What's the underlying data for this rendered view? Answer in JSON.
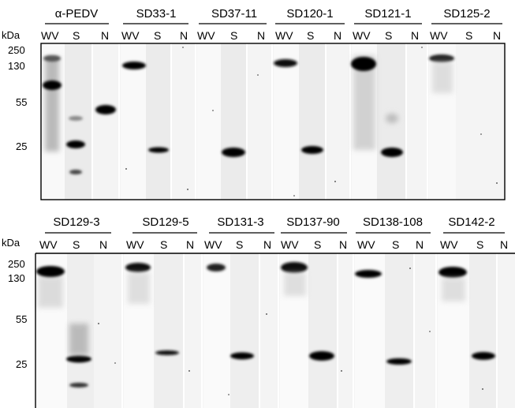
{
  "figure": {
    "unit_label": "kDa",
    "lane_labels": [
      "WV",
      "S",
      "N"
    ],
    "panels": [
      {
        "markers": [
          "250",
          "130",
          "55",
          "25"
        ],
        "blots": [
          {
            "title": "α-PEDV"
          },
          {
            "title": "SD33-1"
          },
          {
            "title": "SD37-11"
          },
          {
            "title": "SD120-1"
          },
          {
            "title": "SD121-1"
          },
          {
            "title": "SD125-2"
          }
        ]
      },
      {
        "markers": [
          "250",
          "130",
          "55",
          "25"
        ],
        "blots": [
          {
            "title": "SD129-3"
          },
          {
            "title": "SD129-5"
          },
          {
            "title": "SD131-3"
          },
          {
            "title": "SD137-90"
          },
          {
            "title": "SD138-108"
          },
          {
            "title": "SD142-2"
          }
        ]
      }
    ]
  }
}
